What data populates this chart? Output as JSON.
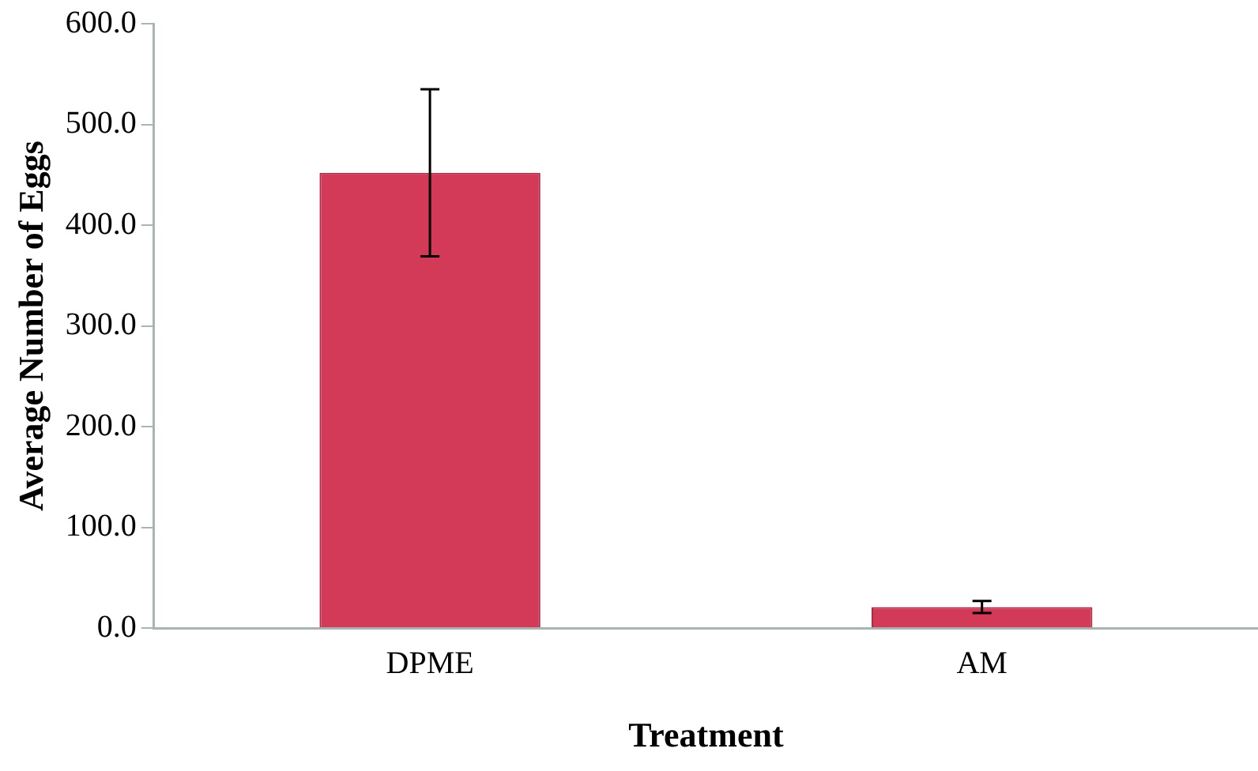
{
  "chart_data": {
    "type": "bar",
    "xlabel": "Treatment",
    "ylabel": "Average Number of Eggs",
    "categories": [
      "DPME",
      "AM"
    ],
    "series": [
      {
        "color": "#d23a57",
        "values": [
          452,
          21
        ],
        "errors": [
          83,
          6
        ]
      }
    ],
    "ylim": [
      0,
      600
    ],
    "yticks": [
      {
        "value": 0,
        "label": "0.0"
      },
      {
        "value": 100,
        "label": "100.0"
      },
      {
        "value": 200,
        "label": "200.0"
      },
      {
        "value": 300,
        "label": "300.0"
      },
      {
        "value": 400,
        "label": "400.0"
      },
      {
        "value": 500,
        "label": "500.0"
      },
      {
        "value": 600,
        "label": "600.0"
      }
    ],
    "grid": false,
    "legend": false
  }
}
